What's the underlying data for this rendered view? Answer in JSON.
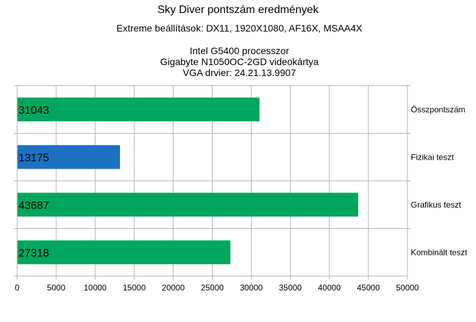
{
  "chart_data": {
    "type": "bar",
    "orientation": "horizontal",
    "title": "Sky Diver pontszám eredmények",
    "subtitle": "Extreme beállítások: DX11, 1920X1080, AF16X, MSAA4X",
    "notes": [
      "Intel G5400 processzor",
      "Gigabyte N1050OC-2GD videokártya",
      "VGA drvier: 24.21.13.9907"
    ],
    "categories": [
      "Összpontszám",
      "Fizikai teszt",
      "Grafikus teszt",
      "Kombinált teszt"
    ],
    "values": [
      31043,
      13175,
      43687,
      27318
    ],
    "bar_colors": [
      "#00a65d",
      "#1c72c1",
      "#00a65d",
      "#00a65d"
    ],
    "xlim": [
      0,
      50000
    ],
    "xticks": [
      0,
      5000,
      10000,
      15000,
      20000,
      25000,
      30000,
      35000,
      40000,
      45000,
      50000
    ],
    "grid": true,
    "category_labels_side": "right"
  }
}
